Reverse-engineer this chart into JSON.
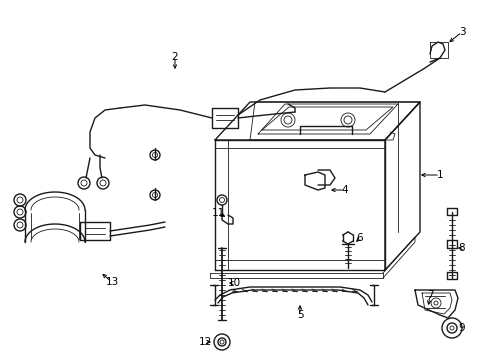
{
  "background_color": "#ffffff",
  "line_color": "#1a1a1a",
  "figsize": [
    4.89,
    3.6
  ],
  "dpi": 100,
  "lw": 1.0,
  "tlw": 0.6
}
